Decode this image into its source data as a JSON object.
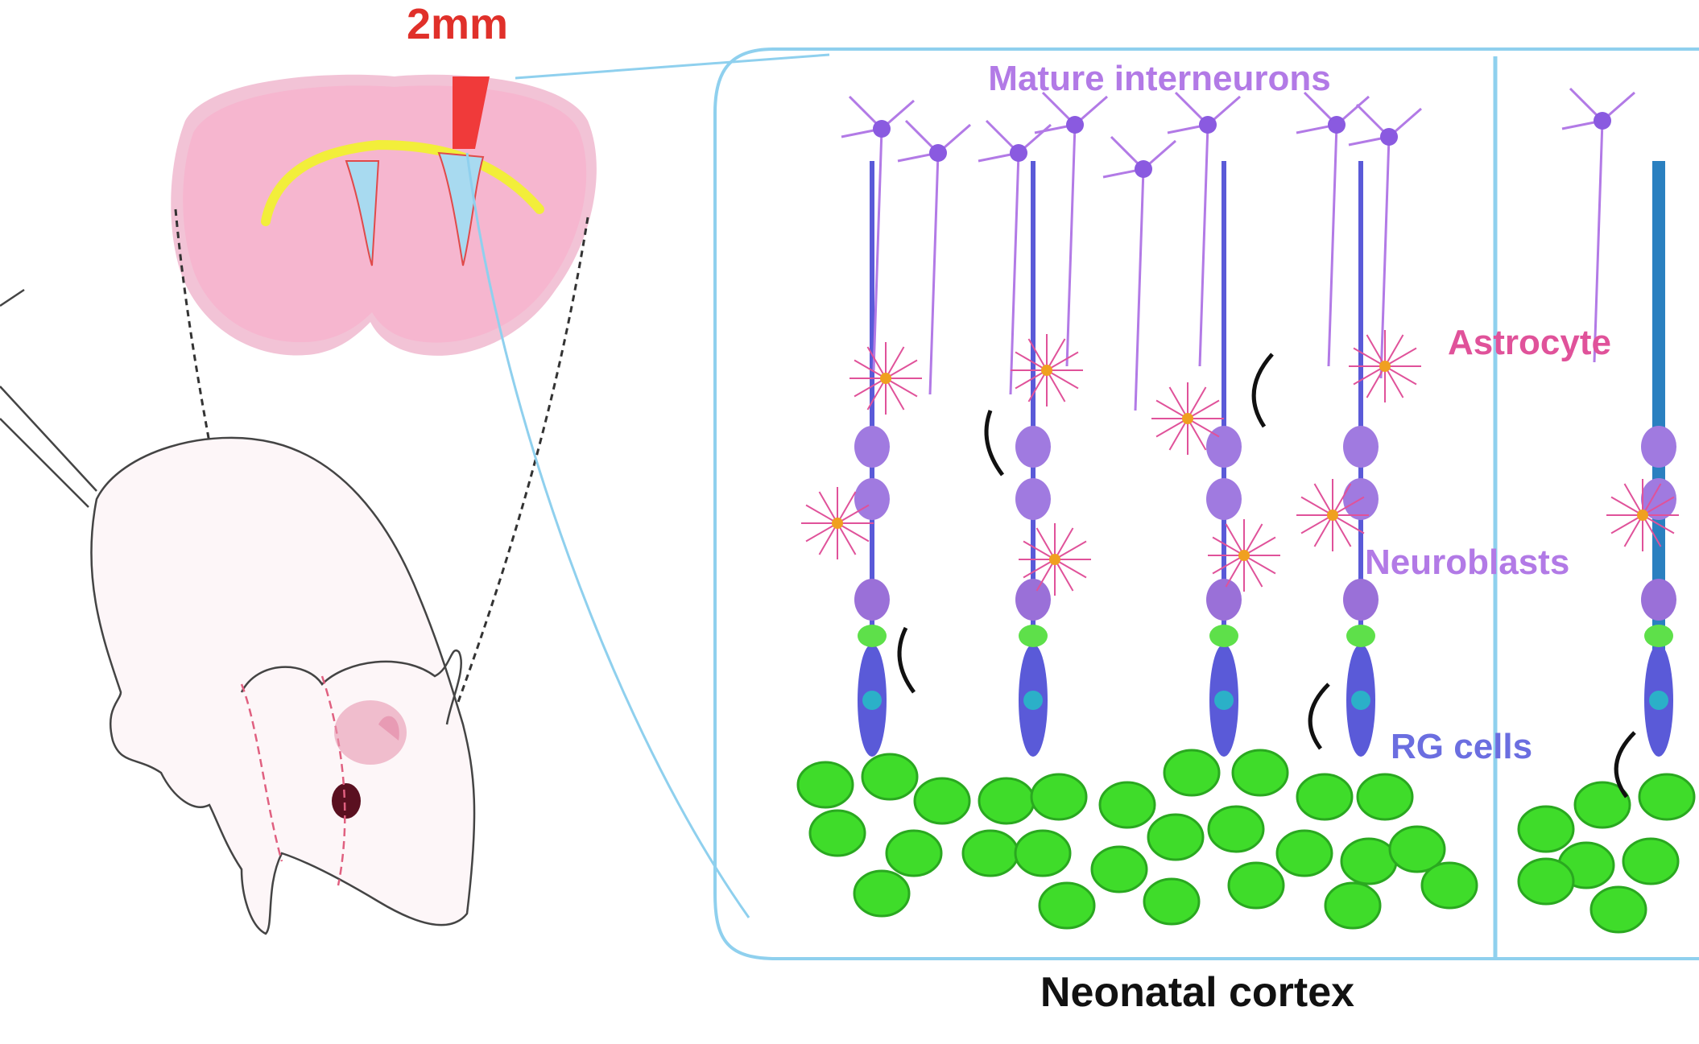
{
  "scale_label": "2mm",
  "labels": {
    "mature_interneurons": "Mature interneurons",
    "astrocyte": "Astrocyte",
    "neuroblasts": "Neuroblasts",
    "rg_cells": "RG cells"
  },
  "caption": "Neonatal cortex",
  "colors": {
    "scale_red": "#e0302a",
    "brain_pink": "#f4b8cf",
    "ventricle_yellow": "#f2ee3a",
    "panel_border": "#8fd0ee",
    "interneuron_purple": "#b27ae6",
    "astrocyte_pink": "#e0529a",
    "rg_blue": "#6b6ee0",
    "cell_green": "#3fdc2a"
  }
}
